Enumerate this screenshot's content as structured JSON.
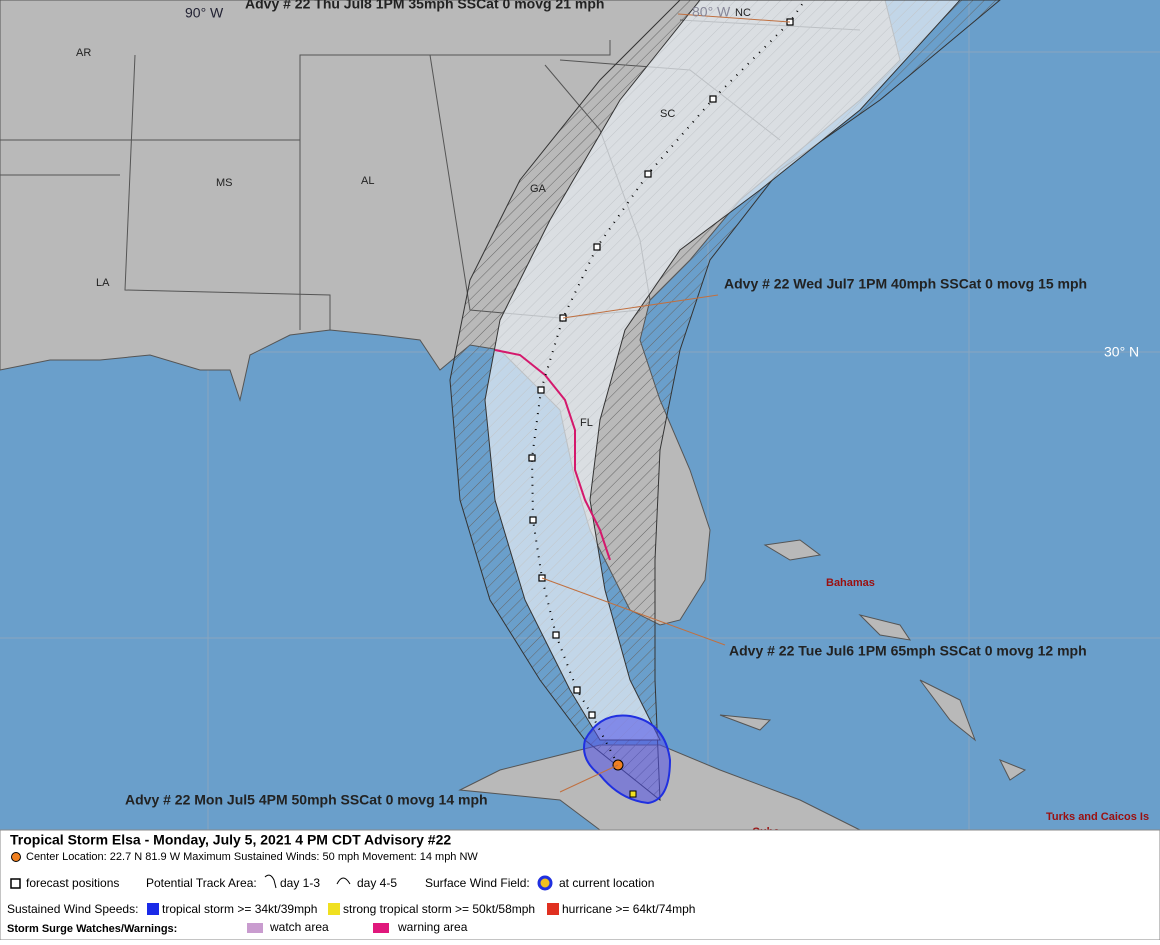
{
  "map": {
    "grid_labels": [
      "90° W",
      "80° W",
      "30° N"
    ],
    "state_labels": [
      "AR",
      "MS",
      "AL",
      "LA",
      "GA",
      "SC",
      "NC",
      "FL"
    ],
    "place_labels": [
      "Bahamas",
      "Turks and Caicos Is",
      "Cuba"
    ],
    "advisories": [
      "Advy # 22 Thu Jul8 1PM  35mph SSCat 0 movg 21 mph",
      "Advy # 22 Wed Jul7 1PM  40mph SSCat 0 movg 15 mph",
      "Advy # 22 Tue Jul6 1PM  65mph SSCat 0 movg 12 mph",
      "Advy # 22 Mon Jul5 4PM  50mph SSCat 0 movg 14 mph"
    ]
  },
  "legend": {
    "title": "Tropical Storm Elsa  -  Monday, July 5, 2021  4 PM CDT   Advisory #22",
    "center": "Center Location: 22.7 N  81.9 W   Maximum Sustained Winds: 50 mph   Movement: 14 mph NW",
    "forecast_positions": "forecast positions",
    "track_area": "Potential Track Area:",
    "day_1_3": "day 1-3",
    "day_4_5": "day 4-5",
    "wind_field": "Surface Wind Field:",
    "current_location": "at current location",
    "wind_speeds": "Sustained Wind Speeds:",
    "tropical_storm": "tropical storm >= 34kt/39mph",
    "strong_tropical_storm": "strong tropical storm >= 50kt/58mph",
    "hurricane": "hurricane >= 64kt/74mph",
    "surge": "Storm Surge Watches/Warnings:",
    "watch": "watch area",
    "warning": "warning area"
  }
}
